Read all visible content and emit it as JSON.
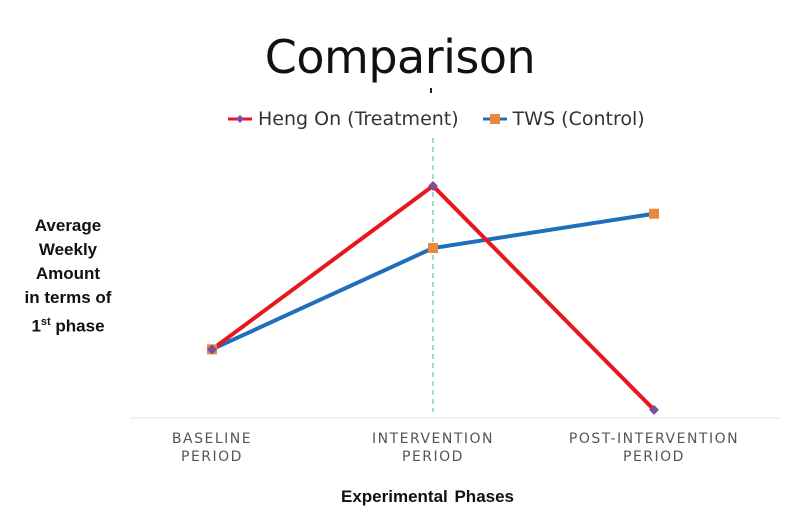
{
  "chart_data": {
    "type": "line",
    "title": "Comparison",
    "categories": [
      "BASELINE\nPERIOD",
      "INTERVENTION\nPERIOD",
      "POST-INTERVENTION\nPERIOD"
    ],
    "series": [
      {
        "name": "Heng On (Treatment)",
        "color": "#e8171e",
        "marker": "diamond",
        "values": [
          0.0,
          1.0,
          -0.37
        ]
      },
      {
        "name": "TWS (Control)",
        "color": "#1f6fbb",
        "marker": "square",
        "marker_color": "#e8893c",
        "values": [
          0.0,
          0.62,
          0.83
        ]
      }
    ],
    "ylabel_lines": [
      "Average",
      "Weekly",
      "Amount",
      "in terms of"
    ],
    "ylabel_last": {
      "num": "1",
      "sup": "st",
      "rest": " phase"
    },
    "xlabel": "Experimental  Phases",
    "ylim": [
      -0.42,
      1.22
    ],
    "grid": false,
    "legend_position": "top",
    "reference_line": {
      "category_index": 1,
      "color": "#3fbf7f",
      "style": "dashed"
    }
  }
}
